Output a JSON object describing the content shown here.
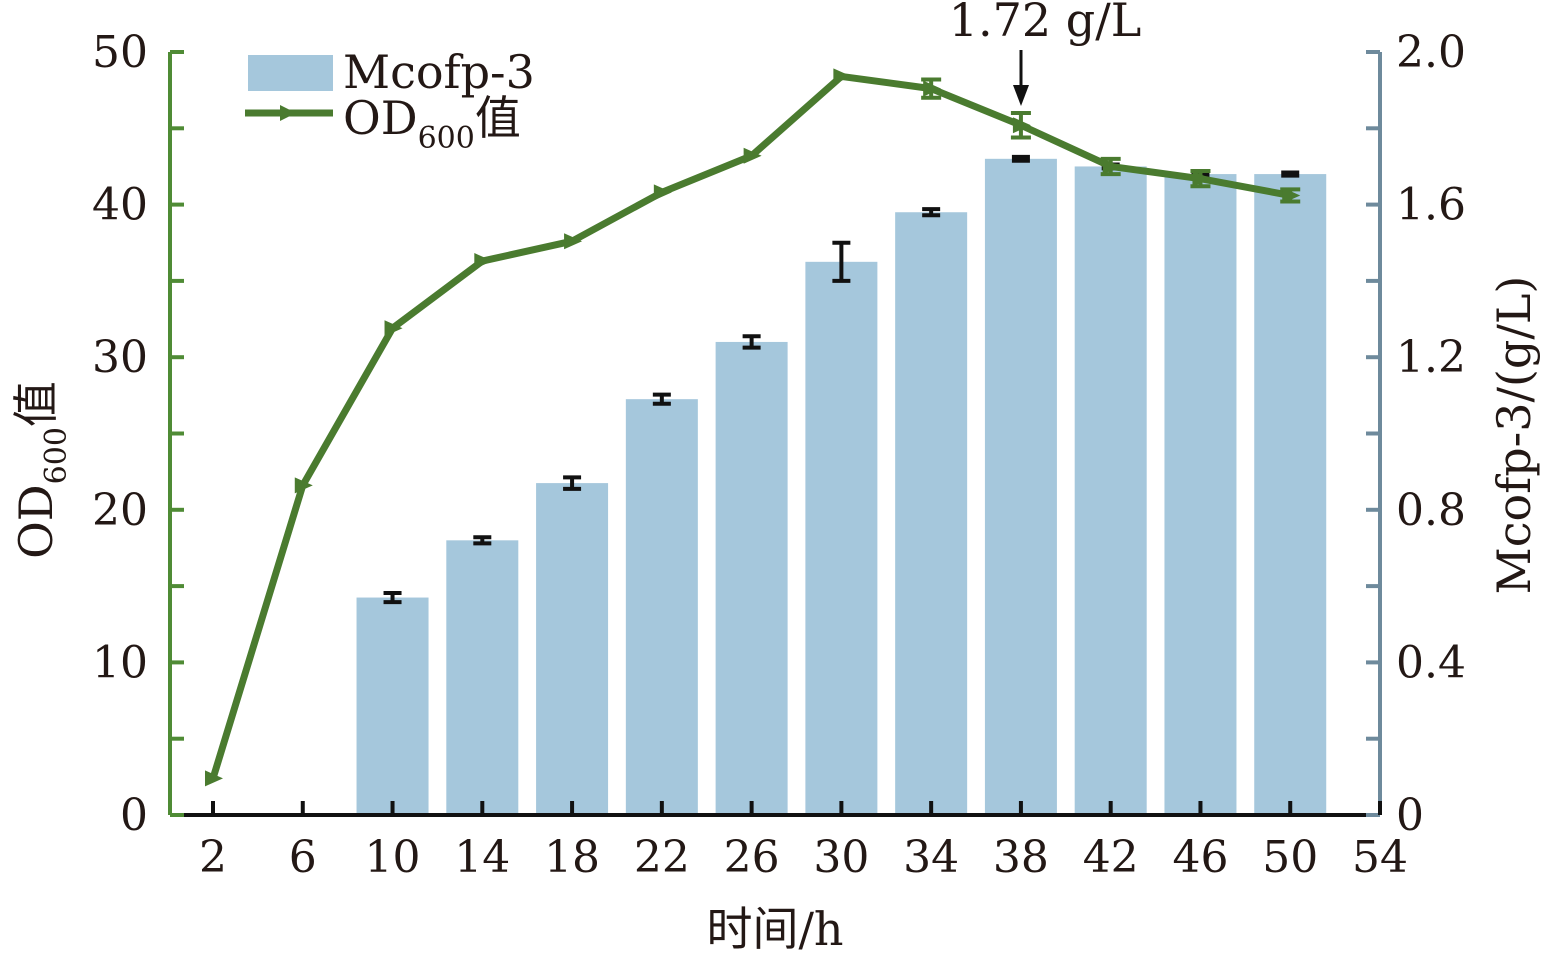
{
  "chart_data": {
    "type": "bar+line",
    "xlabel": "时间/h",
    "ylabel_left": {
      "main": "OD",
      "sub": "600",
      "suffix": "值"
    },
    "ylabel_right": "Mcofp-3/(g/L)",
    "x_ticks": [
      2,
      6,
      10,
      14,
      18,
      22,
      26,
      30,
      34,
      38,
      42,
      46,
      50,
      54
    ],
    "xlim": [
      0,
      54
    ],
    "ylim_left": [
      0,
      50
    ],
    "ylim_right": [
      0,
      2.0
    ],
    "y_ticks_left": [
      "0",
      "10",
      "20",
      "30",
      "40",
      "50"
    ],
    "y_ticks_right": [
      "0",
      "0.4",
      "0.8",
      "1.2",
      "1.6",
      "2.0"
    ],
    "legend": {
      "placement": "top-left",
      "bar_label": "Mcofp-3",
      "line_label_main": "OD",
      "line_label_sub": "600",
      "line_label_suffix": "值"
    },
    "annotation": {
      "text": "1.72 g/L",
      "x": 38
    },
    "series": [
      {
        "name": "Mcofp-3",
        "type": "bar",
        "axis": "right",
        "x": [
          10,
          14,
          18,
          22,
          26,
          30,
          34,
          38,
          42,
          46,
          50
        ],
        "values": [
          0.57,
          0.72,
          0.87,
          1.09,
          1.24,
          1.45,
          1.58,
          1.72,
          1.7,
          1.68,
          1.68
        ],
        "errors": [
          0.012,
          0.008,
          0.015,
          0.012,
          0.015,
          0.05,
          0.008,
          0.005,
          0.005,
          0.005,
          0.004
        ]
      },
      {
        "name": "OD600值",
        "type": "line",
        "axis": "left",
        "x": [
          2,
          6,
          10,
          14,
          18,
          22,
          26,
          30,
          34,
          38,
          42,
          46,
          50
        ],
        "values": [
          2.4,
          21.6,
          31.9,
          36.3,
          37.6,
          40.8,
          43.2,
          48.4,
          47.6,
          45.2,
          42.5,
          41.7,
          40.6
        ],
        "errors": [
          0,
          0,
          0,
          0,
          0,
          0,
          0,
          0,
          0.6,
          0.8,
          0.5,
          0.5,
          0.4
        ]
      }
    ]
  },
  "colors": {
    "bar": "#a5c7dc",
    "line": "#4a7b2f",
    "left_axis": "#4f8b35",
    "right_axis": "#6e8a9c",
    "error": "#111111"
  }
}
